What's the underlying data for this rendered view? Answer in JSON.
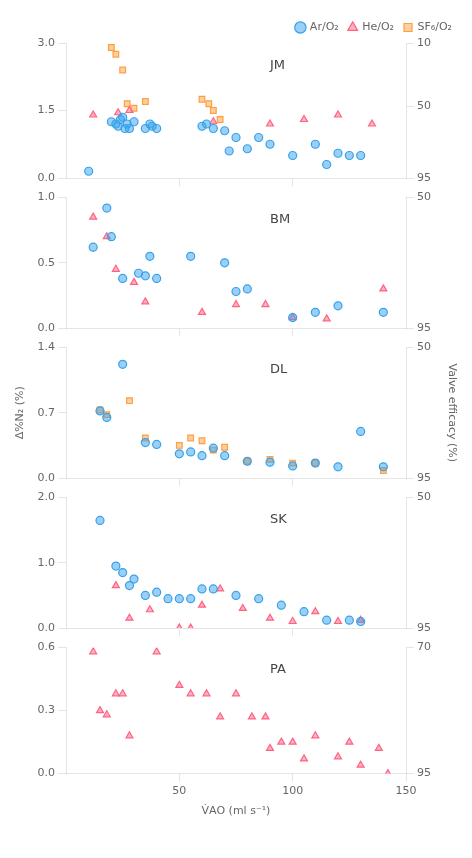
{
  "chart_data": [
    {
      "type": "scatter",
      "annotation": "JM",
      "grid": false,
      "legend": "upper right",
      "tick_labels": "y",
      "xlim": [
        0,
        150
      ],
      "xticks": [
        50,
        100
      ],
      "ylim": [
        0,
        3.0
      ],
      "yticks": [
        {
          "value": 0,
          "label": "0.0"
        },
        1.5,
        {
          "value": 3.0,
          "label": "3.0"
        }
      ],
      "y2lim": [
        95,
        10
      ],
      "y2ticks": [
        95,
        50,
        10
      ],
      "series": [
        {
          "name": "Ar/O₂",
          "marker": "circle",
          "color": "#36A2EB",
          "x": [
            10,
            20,
            22,
            23,
            24,
            25,
            26,
            27,
            28,
            30,
            35,
            37,
            38,
            40,
            60,
            62,
            65,
            70,
            72,
            75,
            80,
            85,
            90,
            100,
            110,
            115,
            120,
            125,
            130
          ],
          "values": [
            0.15,
            1.25,
            1.2,
            1.15,
            1.3,
            1.35,
            1.1,
            1.2,
            1.1,
            1.25,
            1.1,
            1.2,
            1.15,
            1.1,
            1.15,
            1.2,
            1.1,
            1.05,
            0.6,
            0.9,
            0.65,
            0.9,
            0.75,
            0.5,
            0.75,
            0.3,
            0.55,
            0.5,
            0.5
          ]
        },
        {
          "name": "He/O₂",
          "marker": "triangle",
          "color": "#FF6384",
          "x": [
            12,
            23,
            28,
            65,
            90,
            105,
            120,
            135
          ],
          "values": [
            1.4,
            1.45,
            1.5,
            1.25,
            1.2,
            1.3,
            1.4,
            1.2
          ]
        },
        {
          "name": "SF₆/O₂",
          "marker": "square",
          "color": "#FF9F40",
          "x": [
            20,
            22,
            25,
            27,
            30,
            35,
            60,
            63,
            65,
            68
          ],
          "values": [
            2.9,
            2.75,
            2.4,
            1.65,
            1.55,
            1.7,
            1.75,
            1.65,
            1.5,
            1.3
          ]
        }
      ]
    },
    {
      "type": "scatter",
      "annotation": "BM",
      "grid": false,
      "tick_labels": "y",
      "xlim": [
        0,
        150
      ],
      "xticks": [
        50,
        100
      ],
      "ylim": [
        0,
        1.0
      ],
      "yticks": [
        {
          "value": 0,
          "label": "0.0"
        },
        0.5,
        {
          "value": 1.0,
          "label": "1.0"
        }
      ],
      "y2lim": [
        95,
        50
      ],
      "y2ticks": [
        95,
        50
      ],
      "series": [
        {
          "name": "Ar/O₂",
          "marker": "circle",
          "color": "#36A2EB",
          "x": [
            12,
            18,
            20,
            25,
            32,
            35,
            37,
            40,
            55,
            70,
            75,
            80,
            100,
            110,
            120,
            140
          ],
          "values": [
            0.62,
            0.92,
            0.7,
            0.38,
            0.42,
            0.4,
            0.55,
            0.38,
            0.55,
            0.5,
            0.28,
            0.3,
            0.08,
            0.12,
            0.17,
            0.12
          ]
        },
        {
          "name": "He/O₂",
          "marker": "triangle",
          "color": "#FF6384",
          "x": [
            12,
            18,
            22,
            30,
            35,
            60,
            75,
            88,
            100,
            115,
            140
          ],
          "values": [
            0.85,
            0.7,
            0.45,
            0.35,
            0.2,
            0.12,
            0.18,
            0.18,
            0.08,
            0.07,
            0.3
          ]
        }
      ]
    },
    {
      "type": "scatter",
      "annotation": "DL",
      "grid": false,
      "tick_labels": "y",
      "ylabel": "Δ%N₂ (%)",
      "y2label": "Valve efficacy (%)",
      "xlim": [
        0,
        150
      ],
      "xticks": [
        50,
        100
      ],
      "ylim": [
        0,
        1.4
      ],
      "yticks": [
        {
          "value": 0,
          "label": "0.0"
        },
        0.7,
        1.4
      ],
      "y2lim": [
        95,
        50
      ],
      "y2ticks": [
        95,
        50
      ],
      "series": [
        {
          "name": "Ar/O₂",
          "marker": "circle",
          "color": "#36A2EB",
          "x": [
            15,
            18,
            25,
            35,
            40,
            50,
            55,
            60,
            65,
            70,
            80,
            90,
            100,
            110,
            120,
            130,
            140
          ],
          "values": [
            0.72,
            0.65,
            1.22,
            0.38,
            0.36,
            0.26,
            0.28,
            0.24,
            0.32,
            0.24,
            0.18,
            0.17,
            0.13,
            0.16,
            0.12,
            0.5,
            0.12
          ]
        },
        {
          "name": "SF₆/O₂",
          "marker": "square",
          "color": "#FF9F40",
          "x": [
            15,
            18,
            28,
            35,
            50,
            55,
            60,
            65,
            70,
            80,
            90,
            100,
            110,
            140
          ],
          "values": [
            0.73,
            0.68,
            0.83,
            0.43,
            0.35,
            0.43,
            0.4,
            0.3,
            0.33,
            0.18,
            0.2,
            0.16,
            0.16,
            0.08
          ]
        }
      ]
    },
    {
      "type": "scatter",
      "annotation": "SK",
      "grid": false,
      "tick_labels": "y",
      "xlim": [
        0,
        150
      ],
      "xticks": [
        50,
        100
      ],
      "ylim": [
        0,
        2.0
      ],
      "yticks": [
        {
          "value": 0,
          "label": "0.0"
        },
        {
          "value": 1.0,
          "label": "1.0"
        },
        {
          "value": 2.0,
          "label": "2.0"
        }
      ],
      "y2lim": [
        95,
        50
      ],
      "y2ticks": [
        95,
        50
      ],
      "series": [
        {
          "name": "Ar/O₂",
          "marker": "circle",
          "color": "#36A2EB",
          "x": [
            15,
            22,
            25,
            28,
            30,
            35,
            40,
            45,
            50,
            55,
            60,
            65,
            75,
            85,
            95,
            105,
            115,
            125,
            130
          ],
          "values": [
            1.65,
            0.95,
            0.85,
            0.65,
            0.75,
            0.5,
            0.55,
            0.45,
            0.45,
            0.45,
            0.6,
            0.6,
            0.5,
            0.45,
            0.35,
            0.25,
            0.12,
            0.12,
            0.1
          ]
        },
        {
          "name": "He/O₂",
          "marker": "triangle",
          "color": "#FF6384",
          "x": [
            22,
            28,
            37,
            50,
            55,
            60,
            68,
            78,
            90,
            100,
            110,
            120,
            130
          ],
          "values": [
            0.65,
            0.15,
            0.28,
            0.0,
            0.0,
            0.35,
            0.6,
            0.3,
            0.15,
            0.1,
            0.25,
            0.1,
            0.12
          ]
        }
      ]
    },
    {
      "type": "scatter",
      "annotation": "PA",
      "grid": false,
      "xlabel": "V̇AO (ml s⁻¹)",
      "xlim": [
        0,
        150
      ],
      "xticks": [
        50,
        100,
        150
      ],
      "ylim": [
        0,
        0.6
      ],
      "yticks": [
        {
          "value": 0,
          "label": "0.0"
        },
        0.3,
        0.6
      ],
      "y2lim": [
        95,
        70
      ],
      "y2ticks": [
        95,
        70
      ],
      "series": [
        {
          "name": "He/O₂",
          "marker": "triangle",
          "color": "#FF6384",
          "x": [
            12,
            15,
            18,
            22,
            25,
            28,
            40,
            50,
            55,
            62,
            68,
            75,
            82,
            88,
            90,
            95,
            100,
            105,
            110,
            120,
            125,
            130,
            138,
            142
          ],
          "values": [
            0.58,
            0.3,
            0.28,
            0.38,
            0.38,
            0.18,
            0.58,
            0.42,
            0.38,
            0.38,
            0.27,
            0.38,
            0.27,
            0.27,
            0.12,
            0.15,
            0.15,
            0.07,
            0.18,
            0.08,
            0.15,
            0.04,
            0.12,
            0.0
          ]
        }
      ]
    }
  ]
}
